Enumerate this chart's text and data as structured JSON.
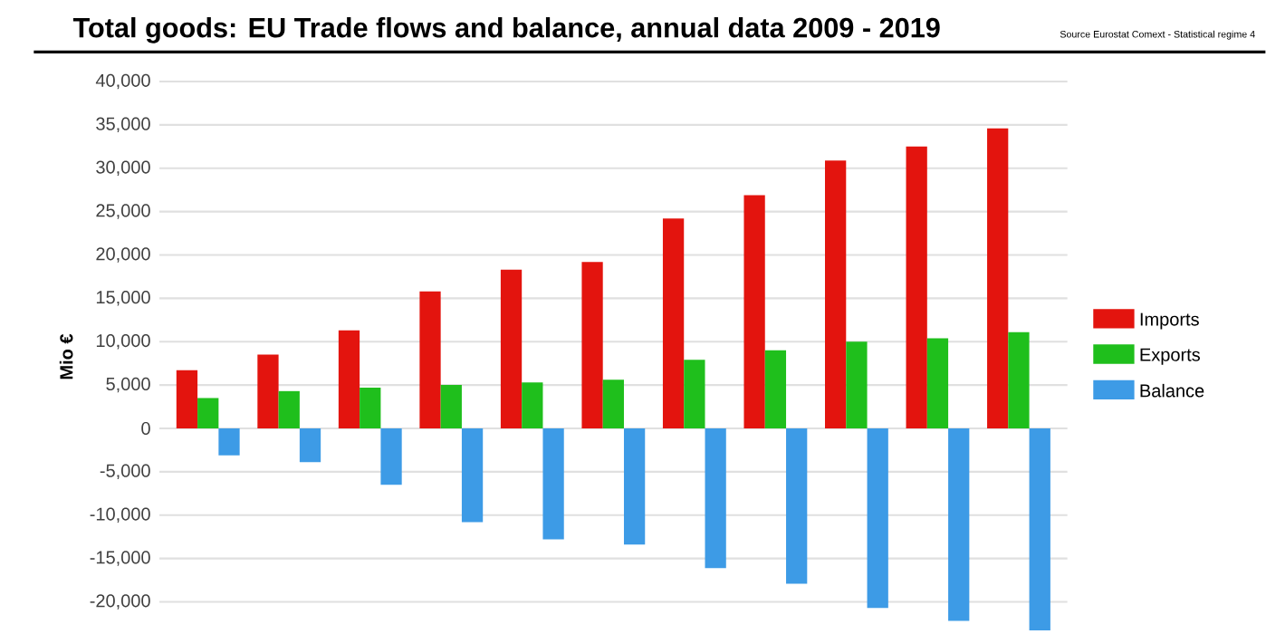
{
  "chart_data": {
    "type": "bar",
    "title": "Total goods: EU Trade flows and balance, annual data 2009 - 2019",
    "annotations": [
      "Source Eurostat Comext  - Statistical regime 4"
    ],
    "ylabel": "Mio €",
    "categories": [
      null,
      null,
      null,
      null,
      null,
      null,
      null,
      null,
      null,
      null,
      null
    ],
    "series": [
      {
        "name": "Imports",
        "color": "#e3140e",
        "values": [
          6700,
          8500,
          11300,
          15800,
          18300,
          19200,
          24200,
          26900,
          30900,
          32500,
          34600
        ]
      },
      {
        "name": "Exports",
        "color": "#1fbf1c",
        "values": [
          3500,
          4300,
          4700,
          5000,
          5300,
          5600,
          7900,
          9000,
          10000,
          10400,
          11100
        ]
      },
      {
        "name": "Balance",
        "color": "#3d9be6",
        "values": [
          -3100,
          -3900,
          -6500,
          -10800,
          -12800,
          -13400,
          -16100,
          -17900,
          -20700,
          -22200,
          -23300
        ]
      }
    ],
    "ylim": [
      -23500,
      40000
    ],
    "yticks": [
      {
        "value": -20000,
        "label": "-20,000"
      },
      {
        "value": -15000,
        "label": "-15,000"
      },
      {
        "value": -10000,
        "label": "-10,000"
      },
      {
        "value": -5000,
        "label": "-5,000"
      },
      0,
      {
        "value": 5000,
        "label": "5,000"
      },
      {
        "value": 10000,
        "label": "10,000"
      },
      {
        "value": 15000,
        "label": "15,000"
      },
      {
        "value": 20000,
        "label": "20,000"
      },
      {
        "value": 25000,
        "label": "25,000"
      },
      {
        "value": 30000,
        "label": "30,000"
      },
      {
        "value": 35000,
        "label": "35,000"
      },
      {
        "value": 40000,
        "label": "40,000"
      }
    ],
    "grid": "y",
    "legend": "right"
  }
}
